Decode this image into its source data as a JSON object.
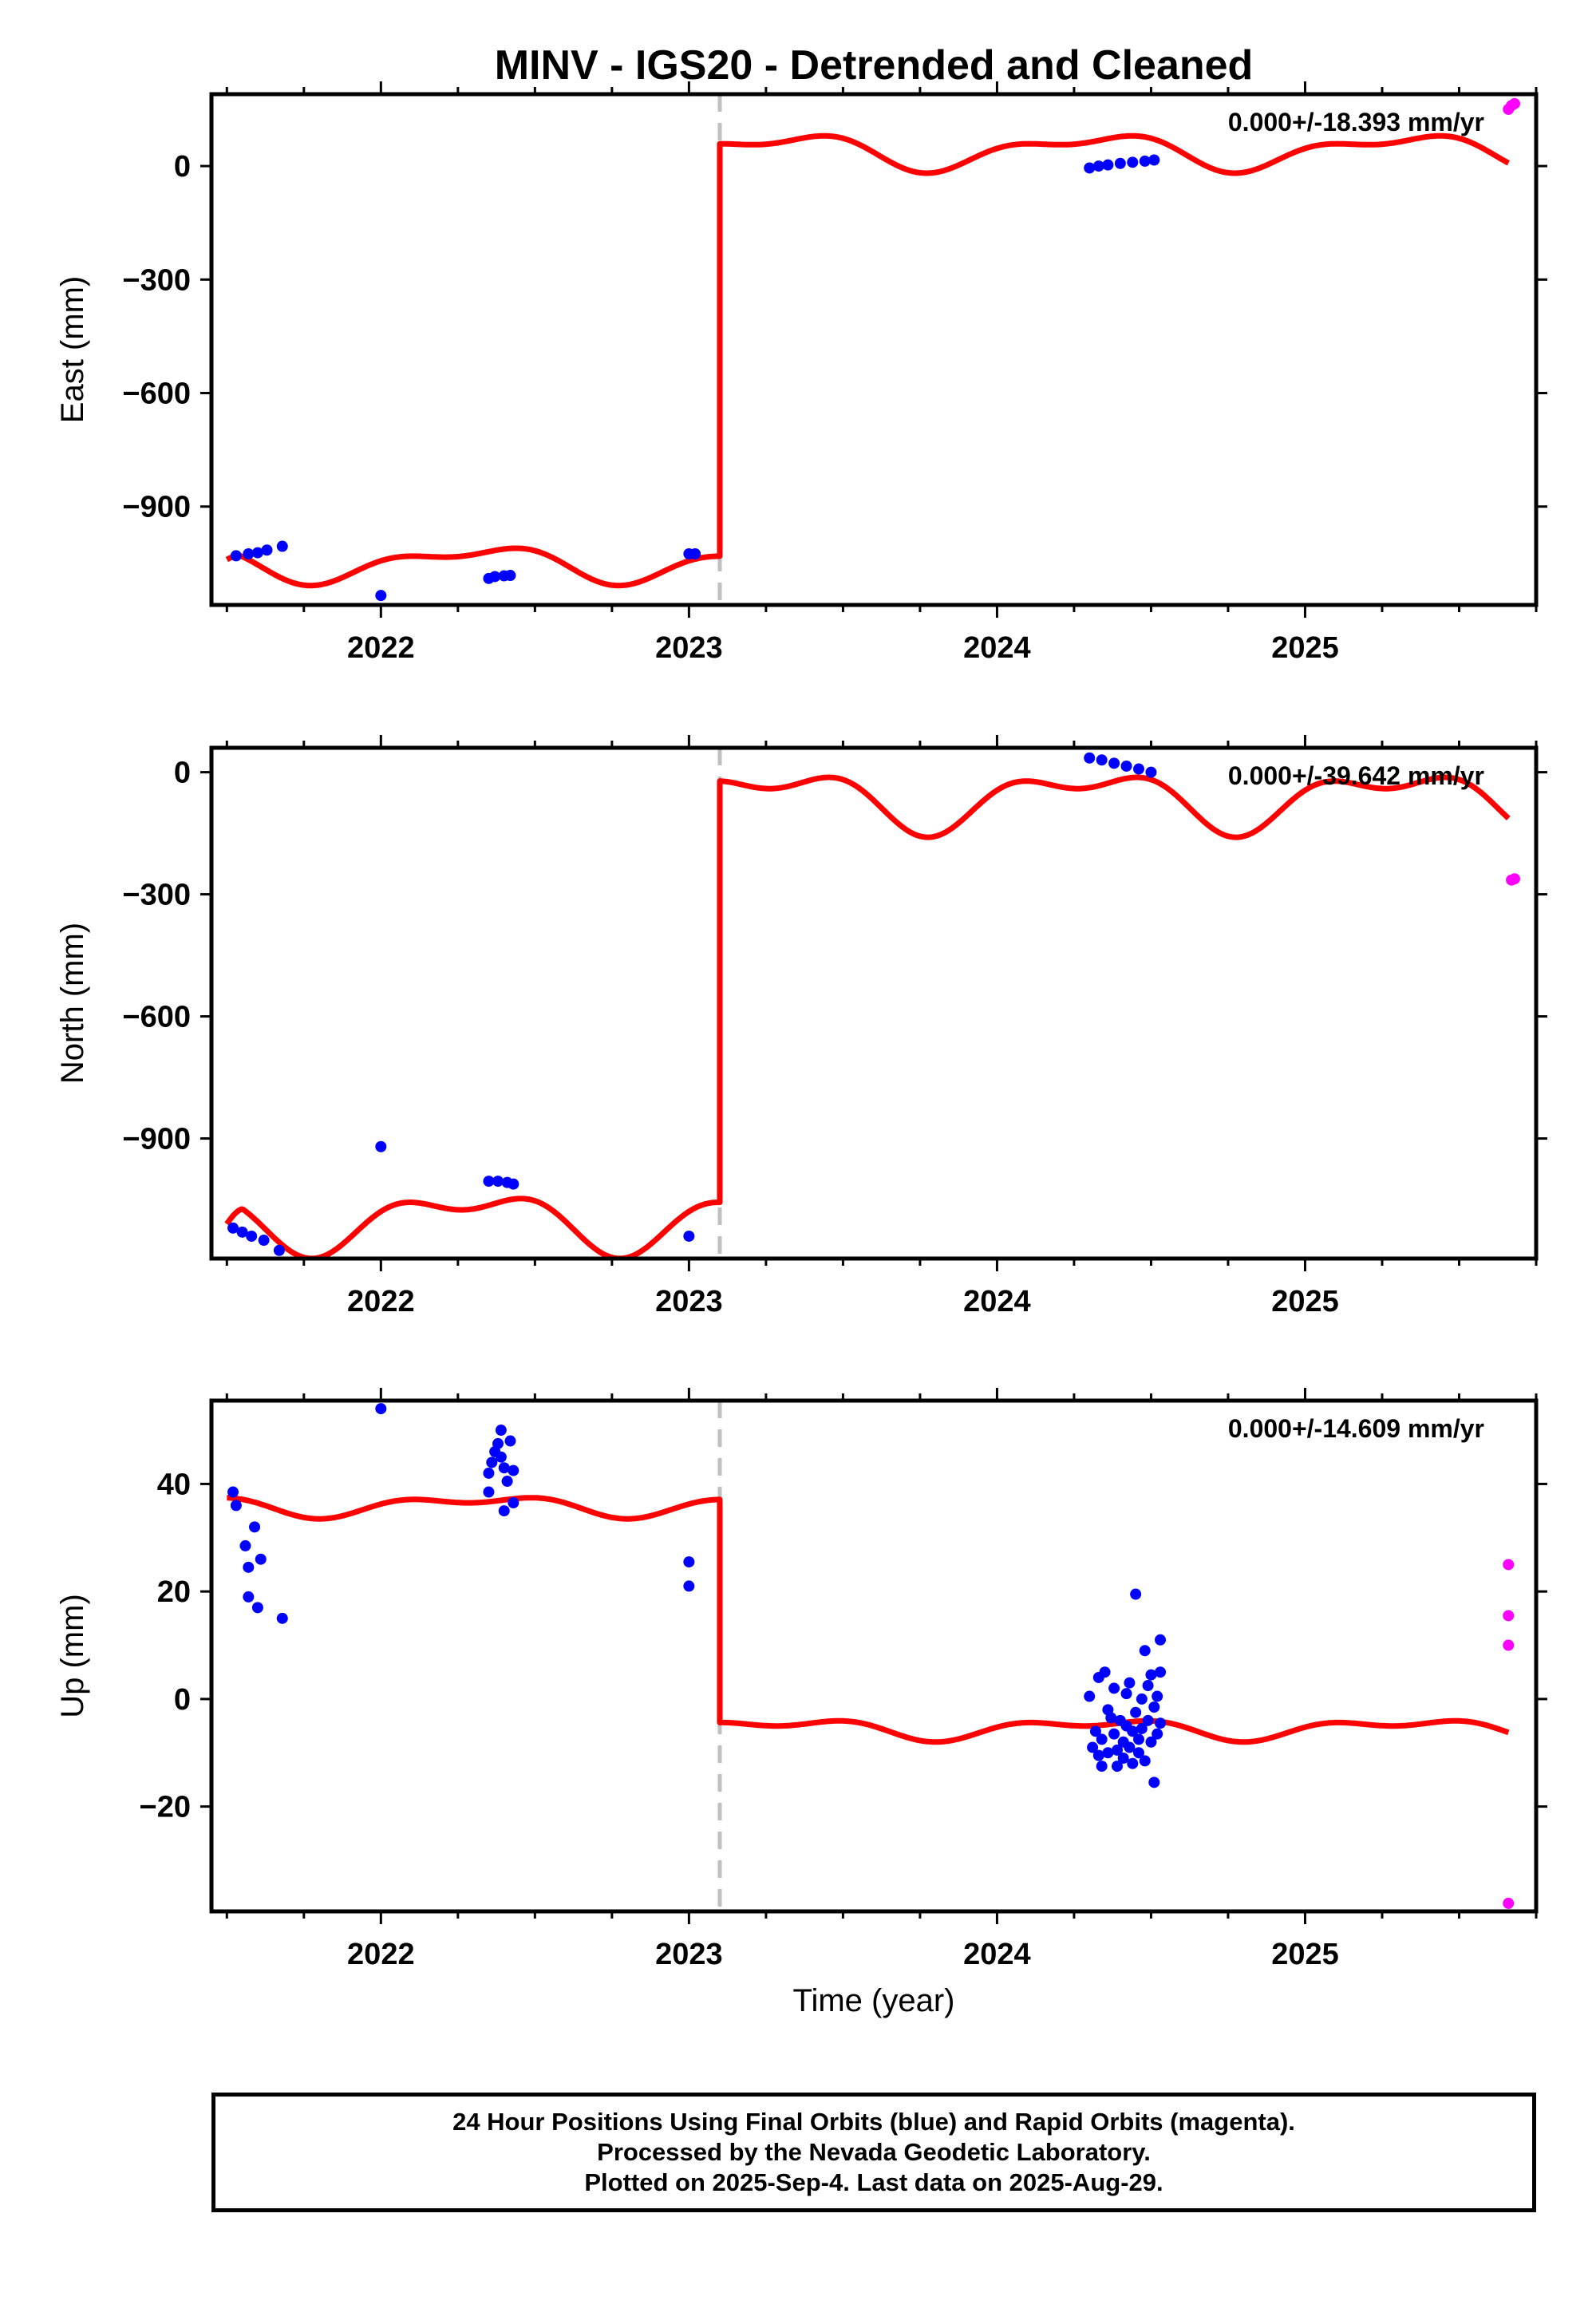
{
  "title": "MINV - IGS20 - Detrended and Cleaned",
  "xlabel": "Time (year)",
  "footer": {
    "line1": "24 Hour Positions Using Final Orbits (blue) and Rapid Orbits (magenta).",
    "line2": "Processed by the Nevada Geodetic Laboratory.",
    "line3": "Plotted on 2025-Sep-4. Last data on 2025-Aug-29."
  },
  "colors": {
    "final_orbits": "#0000ff",
    "rapid_orbits": "#ff00ff",
    "model": "#ff0000",
    "offset_line": "#c0c0c0"
  },
  "chart_data": [
    {
      "type": "scatter",
      "ylabel": "East (mm)",
      "rate_label": "0.000+/-18.393 mm/yr",
      "xlim": [
        2021.45,
        2025.75
      ],
      "ylim": [
        -1160,
        190
      ],
      "yticks": [
        0,
        -300,
        -600,
        -900
      ],
      "xticks": [
        2022,
        2023,
        2024,
        2025
      ],
      "offset_epoch": 2023.1,
      "model": {
        "pre_offset": -1050,
        "post_offset": 40,
        "amp1": 40,
        "amp2": 20,
        "phase1": -0.34,
        "phase2": 1.5,
        "ramp_start": 2021.5,
        "ramp_end": 2021.55,
        "ramp_from": -1040
      },
      "series": [
        {
          "name": "Final Orbits",
          "color": "#0000ff",
          "points": [
            [
              2021.53,
              -1030
            ],
            [
              2021.57,
              -1025
            ],
            [
              2021.6,
              -1022
            ],
            [
              2021.63,
              -1015
            ],
            [
              2021.68,
              -1005
            ],
            [
              2022.0,
              -1135
            ],
            [
              2022.35,
              -1090
            ],
            [
              2022.37,
              -1085
            ],
            [
              2022.4,
              -1083
            ],
            [
              2022.42,
              -1082
            ],
            [
              2023.0,
              -1025
            ],
            [
              2023.02,
              -1025
            ],
            [
              2024.3,
              -5
            ],
            [
              2024.33,
              0
            ],
            [
              2024.36,
              3
            ],
            [
              2024.4,
              7
            ],
            [
              2024.44,
              10
            ],
            [
              2024.48,
              13
            ],
            [
              2024.51,
              16
            ]
          ]
        },
        {
          "name": "Rapid Orbits",
          "color": "#ff00ff",
          "points": [
            [
              2025.66,
              150
            ],
            [
              2025.67,
              160
            ],
            [
              2025.68,
              165
            ]
          ]
        }
      ]
    },
    {
      "type": "scatter",
      "ylabel": "North (mm)",
      "rate_label": "0.000+/-39.642 mm/yr",
      "xlim": [
        2021.45,
        2025.75
      ],
      "ylim": [
        -1195,
        60
      ],
      "yticks": [
        0,
        -300,
        -600,
        -900
      ],
      "xticks": [
        2022,
        2023,
        2024,
        2025
      ],
      "offset_epoch": 2023.1,
      "model": {
        "pre_offset": -1100,
        "post_offset": -65,
        "amp1": 60,
        "amp2": 35,
        "phase1": -0.22,
        "phase2": 1.3,
        "ramp_start": 2021.5,
        "ramp_end": 2021.55,
        "ramp_from": -1110
      },
      "series": [
        {
          "name": "Final Orbits",
          "color": "#0000ff",
          "points": [
            [
              2021.52,
              -1120
            ],
            [
              2021.55,
              -1130
            ],
            [
              2021.58,
              -1140
            ],
            [
              2021.62,
              -1150
            ],
            [
              2021.67,
              -1175
            ],
            [
              2022.0,
              -920
            ],
            [
              2022.35,
              -1005
            ],
            [
              2022.38,
              -1005
            ],
            [
              2022.41,
              -1008
            ],
            [
              2022.43,
              -1012
            ],
            [
              2023.0,
              -1140
            ],
            [
              2024.3,
              35
            ],
            [
              2024.34,
              30
            ],
            [
              2024.38,
              22
            ],
            [
              2024.42,
              15
            ],
            [
              2024.46,
              8
            ],
            [
              2024.5,
              0
            ]
          ]
        },
        {
          "name": "Rapid Orbits",
          "color": "#ff00ff",
          "points": [
            [
              2025.67,
              -265
            ],
            [
              2025.68,
              -262
            ]
          ]
        }
      ]
    },
    {
      "type": "scatter",
      "ylabel": "Up (mm)",
      "rate_label": "0.000+/-14.609 mm/yr",
      "xlim": [
        2021.45,
        2025.75
      ],
      "ylim": [
        -39.5,
        55.5
      ],
      "yticks": [
        40,
        20,
        0,
        -20
      ],
      "xticks": [
        2022,
        2023,
        2024,
        2025
      ],
      "offset_epoch": 2023.1,
      "model": {
        "pre_offset": 36,
        "post_offset": -5.5,
        "amp1": 1.5,
        "amp2": 1.0,
        "phase1": -0.4,
        "phase2": 1.0,
        "ramp_start": 2021.5,
        "ramp_end": 2021.5,
        "ramp_from": 36
      },
      "series": [
        {
          "name": "Final Orbits",
          "color": "#0000ff",
          "points": [
            [
              2021.52,
              38.5
            ],
            [
              2021.53,
              36.0
            ],
            [
              2021.56,
              28.5
            ],
            [
              2021.57,
              24.5
            ],
            [
              2021.57,
              19.0
            ],
            [
              2021.59,
              32.0
            ],
            [
              2021.6,
              17.0
            ],
            [
              2021.61,
              26.0
            ],
            [
              2021.68,
              15.0
            ],
            [
              2022.0,
              54.0
            ],
            [
              2022.35,
              38.5
            ],
            [
              2022.35,
              42.0
            ],
            [
              2022.36,
              44.0
            ],
            [
              2022.37,
              46.0
            ],
            [
              2022.38,
              47.5
            ],
            [
              2022.39,
              45.0
            ],
            [
              2022.39,
              50.0
            ],
            [
              2022.4,
              43.0
            ],
            [
              2022.4,
              35.0
            ],
            [
              2022.41,
              40.5
            ],
            [
              2022.42,
              48.0
            ],
            [
              2022.43,
              36.5
            ],
            [
              2022.43,
              42.5
            ],
            [
              2023.0,
              25.5
            ],
            [
              2023.0,
              21.0
            ],
            [
              2024.3,
              0.5
            ],
            [
              2024.31,
              -9.0
            ],
            [
              2024.32,
              -6.0
            ],
            [
              2024.33,
              -10.5
            ],
            [
              2024.33,
              4.0
            ],
            [
              2024.34,
              -12.5
            ],
            [
              2024.34,
              -7.5
            ],
            [
              2024.35,
              5.0
            ],
            [
              2024.36,
              -2.0
            ],
            [
              2024.36,
              -10.0
            ],
            [
              2024.37,
              -3.5
            ],
            [
              2024.38,
              2.0
            ],
            [
              2024.38,
              -6.5
            ],
            [
              2024.39,
              -9.5
            ],
            [
              2024.39,
              -12.5
            ],
            [
              2024.4,
              -4.0
            ],
            [
              2024.41,
              -8.0
            ],
            [
              2024.41,
              -11.0
            ],
            [
              2024.42,
              1.0
            ],
            [
              2024.42,
              -5.0
            ],
            [
              2024.43,
              3.0
            ],
            [
              2024.43,
              -9.0
            ],
            [
              2024.44,
              -12.0
            ],
            [
              2024.44,
              -6.0
            ],
            [
              2024.45,
              19.5
            ],
            [
              2024.45,
              -2.5
            ],
            [
              2024.46,
              -10.0
            ],
            [
              2024.46,
              -7.5
            ],
            [
              2024.47,
              0.0
            ],
            [
              2024.47,
              -5.5
            ],
            [
              2024.48,
              9.0
            ],
            [
              2024.48,
              -11.5
            ],
            [
              2024.49,
              -4.0
            ],
            [
              2024.49,
              2.5
            ],
            [
              2024.5,
              -8.0
            ],
            [
              2024.5,
              4.5
            ],
            [
              2024.51,
              -1.5
            ],
            [
              2024.51,
              -15.5
            ],
            [
              2024.52,
              -6.5
            ],
            [
              2024.52,
              0.5
            ],
            [
              2024.53,
              11.0
            ],
            [
              2024.53,
              -4.5
            ],
            [
              2024.53,
              5.0
            ]
          ]
        },
        {
          "name": "Rapid Orbits",
          "color": "#ff00ff",
          "points": [
            [
              2025.66,
              25.0
            ],
            [
              2025.66,
              15.5
            ],
            [
              2025.66,
              10.0
            ],
            [
              2025.66,
              -38.0
            ]
          ]
        }
      ]
    }
  ]
}
